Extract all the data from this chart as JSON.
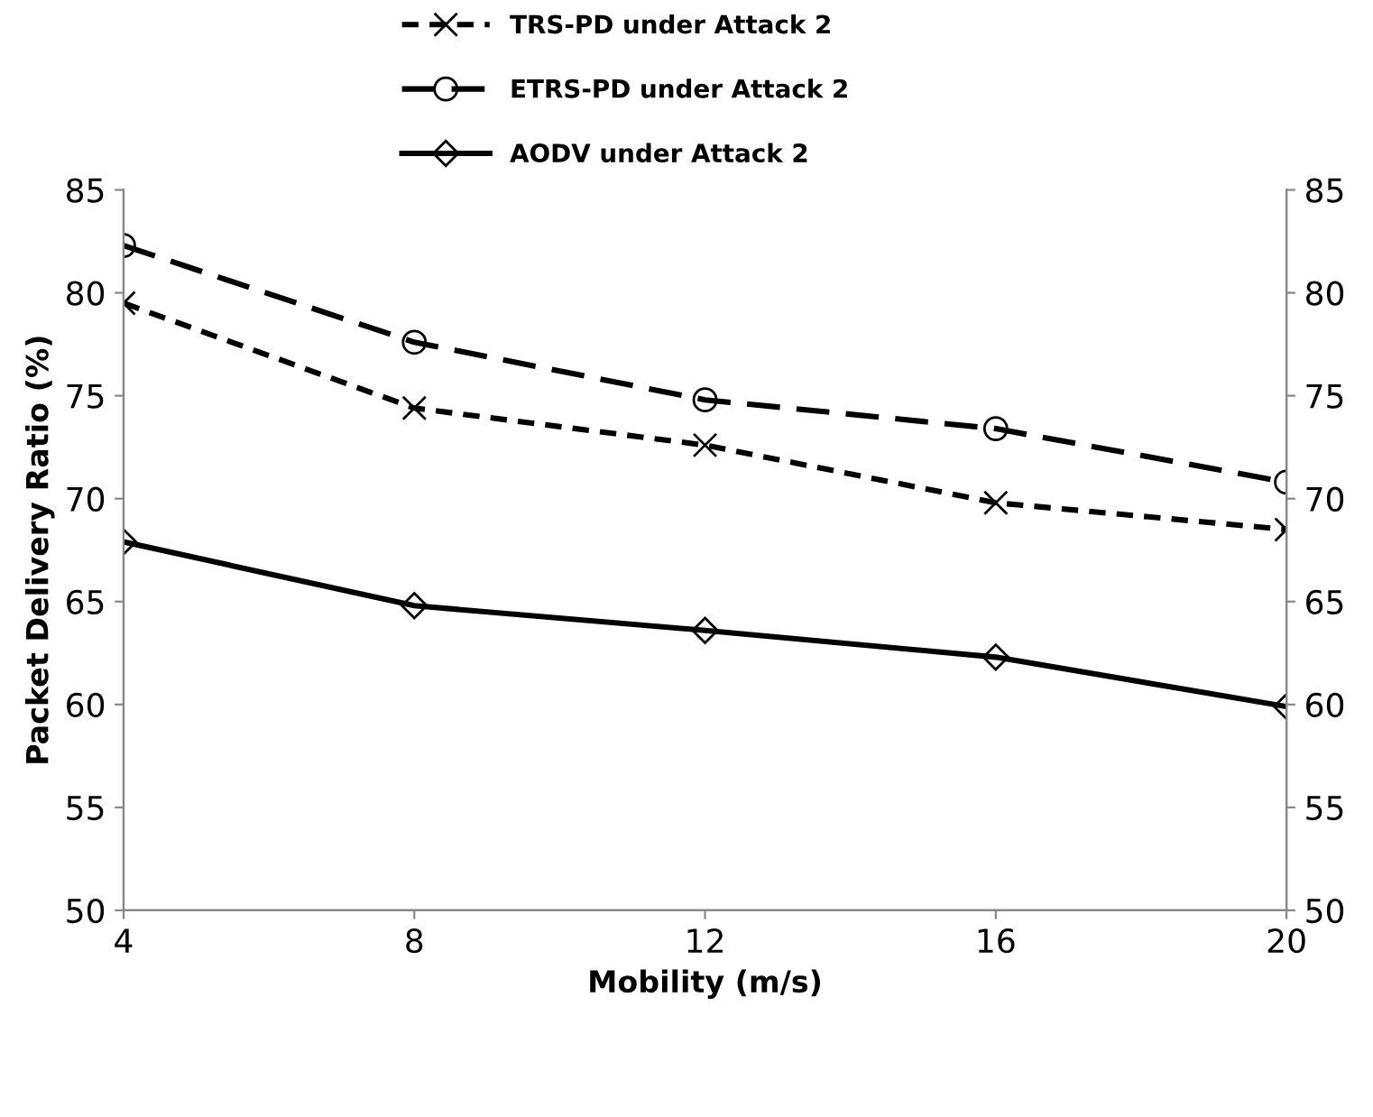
{
  "chart_data": {
    "type": "line",
    "xlabel": "Mobility (m/s)",
    "ylabel": "Packet Delivery Ratio (%)",
    "x": [
      4,
      8,
      12,
      16,
      20
    ],
    "series": [
      {
        "name": "TRS-PD under Attack 2",
        "color": "#000000",
        "marker": "cross",
        "line_style": "dotted",
        "values": [
          79.5,
          74.4,
          72.6,
          69.8,
          68.5
        ]
      },
      {
        "name": "ETRS-PD under Attack 2",
        "color": "#000000",
        "marker": "circle",
        "line_style": "dashed",
        "values": [
          82.3,
          77.6,
          74.8,
          73.4,
          70.8
        ]
      },
      {
        "name": "AODV under Attack 2",
        "color": "#000000",
        "marker": "diamond",
        "line_style": "solid",
        "values": [
          67.9,
          64.8,
          63.6,
          62.3,
          59.9
        ]
      }
    ],
    "xlim": [
      4,
      20
    ],
    "xticks": [
      4,
      8,
      12,
      16,
      20
    ],
    "ylim": [
      50,
      85
    ],
    "yticks": [
      50,
      55,
      60,
      65,
      70,
      75,
      80,
      85
    ],
    "y2lim": [
      50,
      85
    ],
    "y2ticks": [
      50,
      55,
      60,
      65,
      70,
      75,
      80,
      85
    ],
    "grid": false,
    "legend": "top"
  }
}
